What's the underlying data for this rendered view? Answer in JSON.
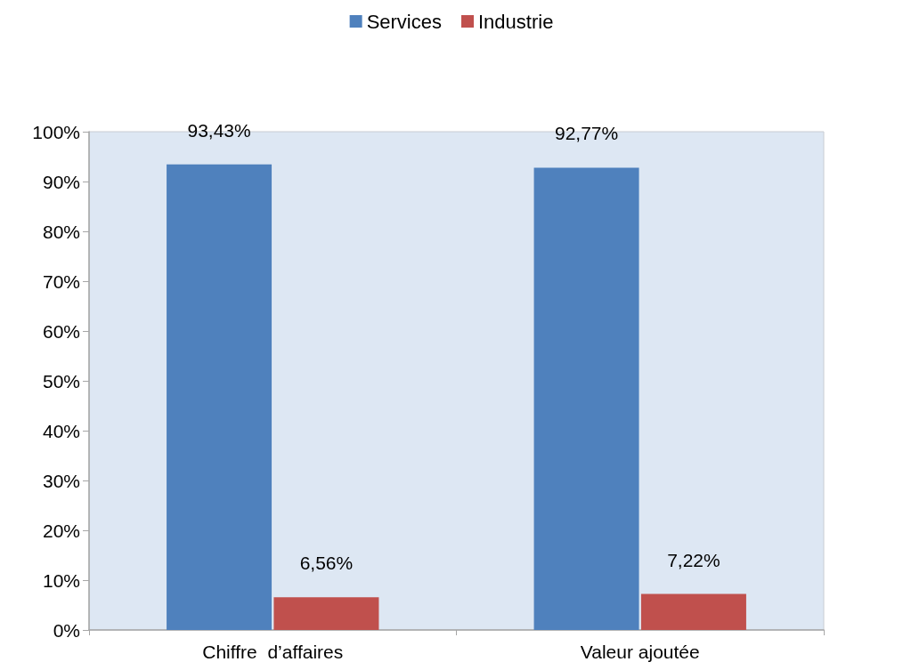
{
  "chart_data": {
    "type": "bar",
    "categories": [
      "Chiffre  d’affaires",
      "Valeur ajoutée"
    ],
    "series": [
      {
        "name": "Services",
        "color": "#4f81bd",
        "values": [
          93.43,
          92.77
        ],
        "value_labels": [
          "93,43%",
          "92,77%"
        ]
      },
      {
        "name": "Industrie",
        "color": "#c0504d",
        "values": [
          6.56,
          7.22
        ],
        "value_labels": [
          "6,56%",
          "7,22%"
        ]
      }
    ],
    "ylim": [
      0,
      100
    ],
    "yticks": [
      {
        "value": 0,
        "label": "0%"
      },
      {
        "value": 10,
        "label": "10%"
      },
      {
        "value": 20,
        "label": "20%"
      },
      {
        "value": 30,
        "label": "30%"
      },
      {
        "value": 40,
        "label": "40%"
      },
      {
        "value": 50,
        "label": "50%"
      },
      {
        "value": 60,
        "label": "60%"
      },
      {
        "value": 70,
        "label": "70%"
      },
      {
        "value": 80,
        "label": "80%"
      },
      {
        "value": 90,
        "label": "90%"
      },
      {
        "value": 100,
        "label": "100%"
      }
    ],
    "grid": false,
    "legend": "top"
  }
}
